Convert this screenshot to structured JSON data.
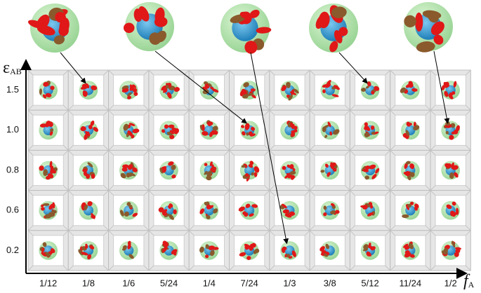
{
  "y_axis": {
    "label": "ε",
    "subscript": "AB",
    "ticks": [
      "1.5",
      "1.0",
      "0.8",
      "0.6",
      "0.2"
    ]
  },
  "x_axis": {
    "label": "f",
    "subscript": "A",
    "ticks": [
      "1/12",
      "1/8",
      "1/6",
      "5/24",
      "1/4",
      "7/24",
      "1/3",
      "3/8",
      "5/12",
      "11/24",
      "1/2"
    ]
  }
}
